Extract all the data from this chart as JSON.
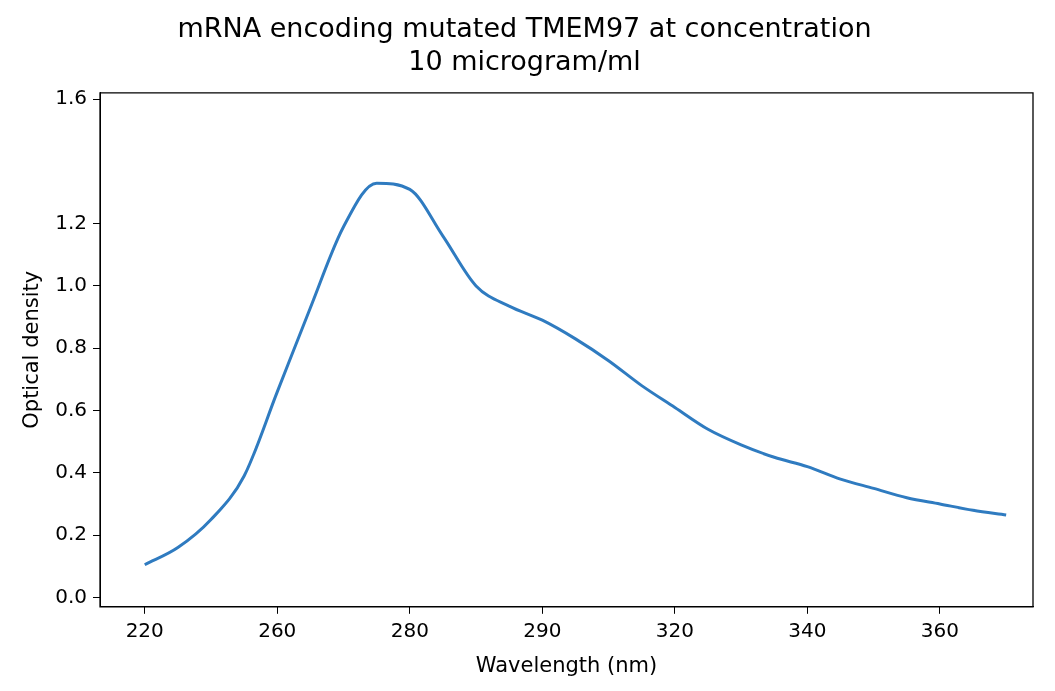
{
  "chart_data": {
    "type": "line",
    "title": "mRNA encoding mutated TMEM97 at concentration\n10 microgram/ml",
    "xlabel": "Wavelength (nm)",
    "ylabel": "Optical density",
    "categories": [
      "220",
      null,
      null,
      null,
      "260",
      null,
      null,
      null,
      "280",
      null,
      null,
      null,
      "290",
      null,
      null,
      null,
      "320",
      null,
      null,
      null,
      "340",
      null,
      null,
      null,
      "360",
      null,
      null
    ],
    "series": [
      {
        "color": "#2f7bc0",
        "values": [
          0.105,
          0.16,
          0.25,
          0.39,
          0.66,
          0.93,
          1.19,
          1.33,
          1.31,
          1.16,
          1.0,
          0.935,
          0.89,
          0.83,
          0.76,
          0.68,
          0.61,
          0.54,
          0.49,
          0.45,
          0.42,
          0.38,
          0.35,
          0.32,
          0.3,
          0.28,
          0.265
        ]
      }
    ],
    "ylim": [
      -0.03,
      1.62
    ],
    "yticks": [
      {
        "value": 0,
        "label": "0.0"
      },
      0.2,
      0.4,
      0.6,
      0.8,
      {
        "value": 1,
        "label": "1.0"
      },
      1.2,
      1.6
    ],
    "grid": false,
    "legend": false,
    "marker": "none",
    "line_style": "solid"
  }
}
